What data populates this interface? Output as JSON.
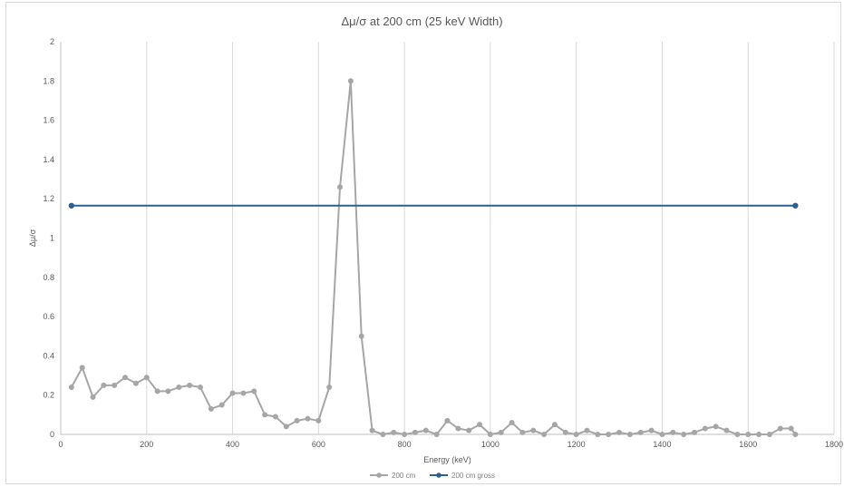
{
  "chart_data": {
    "type": "line",
    "title": "Δμ/σ at 200 cm (25 keV Width)",
    "xlabel": "Energy (keV)",
    "ylabel": "Δμ/σ",
    "xlim": [
      0,
      1800
    ],
    "ylim": [
      0,
      2
    ],
    "x_ticks": [
      0,
      200,
      400,
      600,
      800,
      1000,
      1200,
      1400,
      1600,
      1800
    ],
    "y_ticks": [
      0,
      0.2,
      0.4,
      0.6,
      0.8,
      1,
      1.2,
      1.4,
      1.6,
      1.8,
      2
    ],
    "grid": "vertical",
    "legend_position": "bottom",
    "series": [
      {
        "name": "200 cm",
        "color": "#a6a6a6",
        "points": [
          [
            25,
            0.24
          ],
          [
            50,
            0.34
          ],
          [
            75,
            0.19
          ],
          [
            100,
            0.25
          ],
          [
            125,
            0.25
          ],
          [
            150,
            0.29
          ],
          [
            175,
            0.26
          ],
          [
            200,
            0.29
          ],
          [
            225,
            0.22
          ],
          [
            250,
            0.22
          ],
          [
            275,
            0.24
          ],
          [
            300,
            0.25
          ],
          [
            325,
            0.24
          ],
          [
            350,
            0.13
          ],
          [
            375,
            0.15
          ],
          [
            400,
            0.21
          ],
          [
            425,
            0.21
          ],
          [
            450,
            0.22
          ],
          [
            475,
            0.1
          ],
          [
            500,
            0.09
          ],
          [
            525,
            0.04
          ],
          [
            550,
            0.07
          ],
          [
            575,
            0.08
          ],
          [
            600,
            0.07
          ],
          [
            625,
            0.24
          ],
          [
            650,
            1.26
          ],
          [
            675,
            1.8
          ],
          [
            700,
            0.5
          ],
          [
            725,
            0.02
          ],
          [
            750,
            0.0
          ],
          [
            775,
            0.01
          ],
          [
            800,
            0.0
          ],
          [
            825,
            0.01
          ],
          [
            850,
            0.02
          ],
          [
            875,
            0.0
          ],
          [
            900,
            0.07
          ],
          [
            925,
            0.03
          ],
          [
            950,
            0.02
          ],
          [
            975,
            0.05
          ],
          [
            1000,
            0.0
          ],
          [
            1025,
            0.01
          ],
          [
            1050,
            0.06
          ],
          [
            1075,
            0.01
          ],
          [
            1100,
            0.02
          ],
          [
            1125,
            0.0
          ],
          [
            1150,
            0.05
          ],
          [
            1175,
            0.01
          ],
          [
            1200,
            0.0
          ],
          [
            1225,
            0.02
          ],
          [
            1250,
            0.0
          ],
          [
            1275,
            0.0
          ],
          [
            1300,
            0.01
          ],
          [
            1325,
            0.0
          ],
          [
            1350,
            0.01
          ],
          [
            1375,
            0.02
          ],
          [
            1400,
            0.0
          ],
          [
            1425,
            0.01
          ],
          [
            1450,
            0.0
          ],
          [
            1475,
            0.01
          ],
          [
            1500,
            0.03
          ],
          [
            1525,
            0.04
          ],
          [
            1550,
            0.02
          ],
          [
            1575,
            0.0
          ],
          [
            1600,
            0.0
          ],
          [
            1625,
            0.0
          ],
          [
            1650,
            0.0
          ],
          [
            1675,
            0.03
          ],
          [
            1700,
            0.03
          ],
          [
            1710,
            0.0
          ]
        ]
      },
      {
        "name": "200 cm gross",
        "color": "#2e5f8f",
        "points": [
          [
            25,
            1.165
          ],
          [
            1710,
            1.165
          ]
        ]
      }
    ]
  }
}
